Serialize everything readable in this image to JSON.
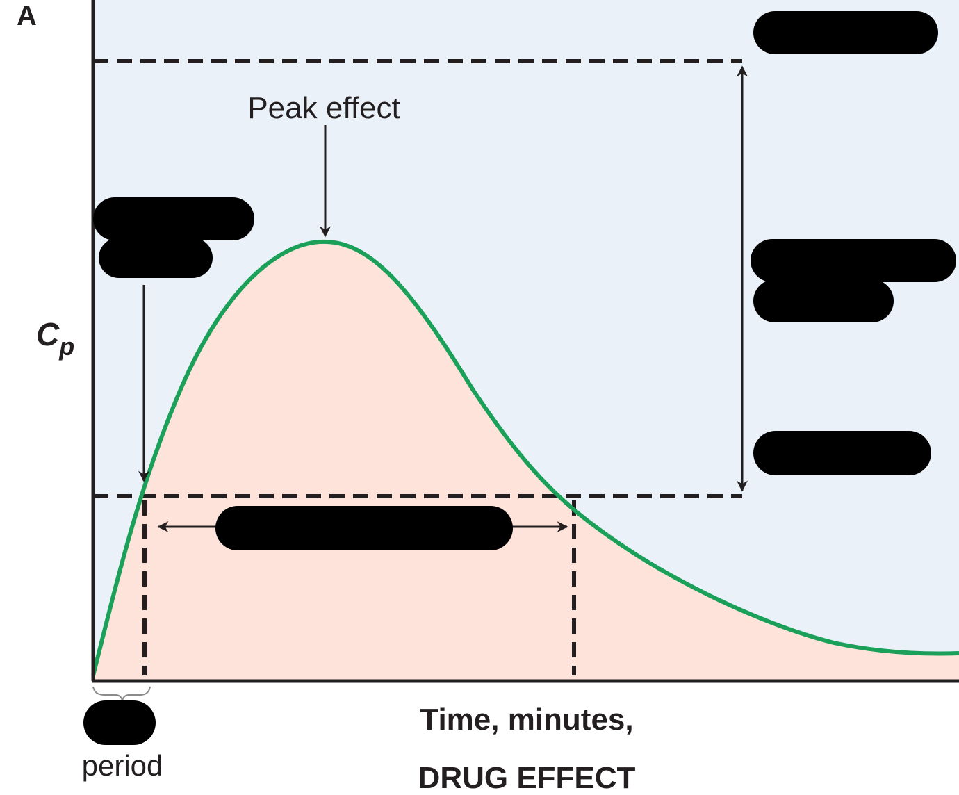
{
  "panel_label": "A",
  "y_axis_label": {
    "main": "C",
    "subscript": "p"
  },
  "annotations": {
    "peak_effect": "Peak effect",
    "onset_period": "period"
  },
  "x_axis_label": {
    "line1": "Time, minutes,",
    "line2": "DRUG EFFECT"
  },
  "redacted_labels": [
    "top-right-label",
    "onset-label",
    "therapeutic-range-label",
    "threshold-label",
    "duration-label",
    "onset-period-label"
  ],
  "colors": {
    "plot_background": "#eaf1f9",
    "area_under_curve": "#fde3da",
    "curve": "#1ba05a",
    "lines": "#231f20",
    "redaction": "#000000"
  }
}
